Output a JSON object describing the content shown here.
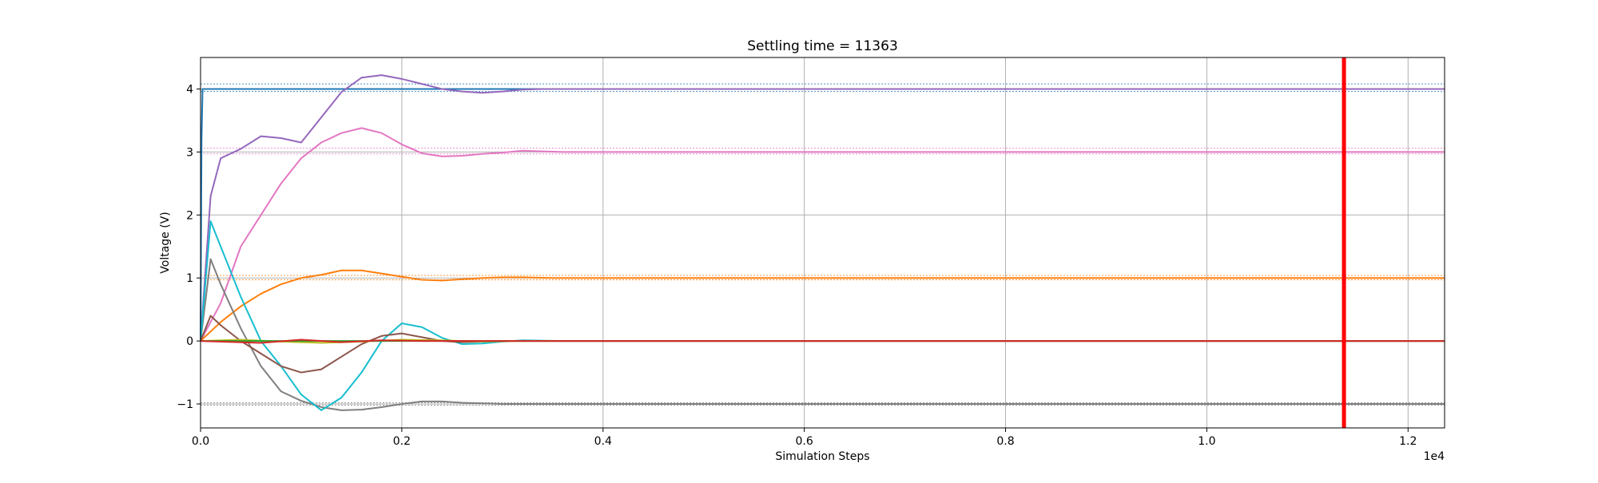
{
  "chart_data": {
    "type": "line",
    "title": "Settling time = 11363",
    "xlabel": "Simulation Steps",
    "ylabel": "Voltage (V)",
    "x_offset_label": "1e4",
    "xlim": [
      0,
      12363
    ],
    "ylim": [
      -1.38,
      4.5
    ],
    "x_ticks": [
      0,
      2000,
      4000,
      6000,
      8000,
      10000,
      12000
    ],
    "x_tick_labels": [
      "0.0",
      "0.2",
      "0.4",
      "0.6",
      "0.8",
      "1.0",
      "1.2"
    ],
    "y_ticks": [
      -1,
      0,
      1,
      2,
      3,
      4
    ],
    "y_tick_labels": [
      "−1",
      "0",
      "1",
      "2",
      "3",
      "4"
    ],
    "grid": true,
    "settling_time": 11363,
    "settling_line_color": "#ff0000",
    "tolerance_bands": [
      {
        "target": 4,
        "lower": 3.96,
        "upper": 4.08,
        "color": "#1f77b4"
      },
      {
        "target": 3,
        "lower": 2.97,
        "upper": 3.06,
        "color": "#e377c2"
      },
      {
        "target": 1,
        "lower": 0.97,
        "upper": 1.04,
        "color": "#ff7f0e"
      },
      {
        "target": -1,
        "lower": -1.02,
        "upper": -0.98,
        "color": "#7f7f7f"
      }
    ],
    "series": [
      {
        "color": "#1f77b4",
        "x": [
          0,
          10,
          20,
          30,
          40,
          60,
          100,
          12363
        ],
        "y": [
          0,
          3.2,
          4.0,
          4.0,
          4.0,
          4.0,
          4.0,
          4.0
        ]
      },
      {
        "color": "#9467bd",
        "x": [
          0,
          100,
          200,
          400,
          600,
          800,
          1000,
          1200,
          1400,
          1600,
          1800,
          2000,
          2200,
          2400,
          2600,
          2800,
          3000,
          3200,
          3400,
          3600,
          4000,
          12363
        ],
        "y": [
          0,
          2.3,
          2.9,
          3.05,
          3.25,
          3.22,
          3.15,
          3.55,
          3.95,
          4.18,
          4.22,
          4.16,
          4.08,
          4.0,
          3.96,
          3.94,
          3.96,
          3.99,
          4.0,
          4.0,
          4.0,
          4.0
        ]
      },
      {
        "color": "#e377c2",
        "x": [
          0,
          200,
          400,
          600,
          800,
          1000,
          1200,
          1400,
          1600,
          1800,
          2000,
          2200,
          2400,
          2600,
          2800,
          3000,
          3200,
          3400,
          3600,
          4000,
          12363
        ],
        "y": [
          0,
          0.6,
          1.5,
          2.0,
          2.5,
          2.9,
          3.15,
          3.3,
          3.38,
          3.3,
          3.12,
          2.98,
          2.93,
          2.94,
          2.97,
          2.99,
          3.02,
          3.01,
          3.0,
          3.0,
          3.0
        ]
      },
      {
        "color": "#ff7f0e",
        "x": [
          0,
          200,
          400,
          600,
          800,
          1000,
          1200,
          1400,
          1600,
          1800,
          2000,
          2200,
          2400,
          2600,
          2800,
          3000,
          3200,
          3500,
          4000,
          12363
        ],
        "y": [
          0,
          0.3,
          0.55,
          0.75,
          0.9,
          1.0,
          1.05,
          1.12,
          1.12,
          1.07,
          1.02,
          0.97,
          0.96,
          0.98,
          1.0,
          1.01,
          1.01,
          1.0,
          1.0,
          1.0
        ]
      },
      {
        "color": "#7f7f7f",
        "x": [
          0,
          100,
          200,
          400,
          600,
          800,
          1000,
          1200,
          1400,
          1600,
          1800,
          2000,
          2200,
          2400,
          2600,
          2800,
          3000,
          3400,
          4000,
          12363
        ],
        "y": [
          0,
          1.3,
          0.9,
          0.2,
          -0.4,
          -0.8,
          -0.95,
          -1.05,
          -1.1,
          -1.09,
          -1.05,
          -1.0,
          -0.96,
          -0.96,
          -0.98,
          -0.99,
          -1.0,
          -1.0,
          -1.0,
          -1.0
        ]
      },
      {
        "color": "#17becf",
        "x": [
          0,
          100,
          200,
          400,
          600,
          800,
          1000,
          1200,
          1400,
          1600,
          1800,
          2000,
          2200,
          2400,
          2600,
          2800,
          3000,
          3200,
          3600,
          12363
        ],
        "y": [
          0,
          1.9,
          1.5,
          0.7,
          0.0,
          -0.4,
          -0.85,
          -1.1,
          -0.9,
          -0.5,
          0.0,
          0.28,
          0.22,
          0.05,
          -0.05,
          -0.04,
          -0.01,
          0.01,
          0.0,
          0.0
        ]
      },
      {
        "color": "#8c564b",
        "x": [
          0,
          100,
          200,
          400,
          600,
          800,
          1000,
          1200,
          1400,
          1600,
          1800,
          2000,
          2200,
          2400,
          2600,
          3000,
          12363
        ],
        "y": [
          0,
          0.4,
          0.25,
          0.0,
          -0.2,
          -0.4,
          -0.5,
          -0.45,
          -0.25,
          -0.05,
          0.08,
          0.12,
          0.06,
          0.0,
          -0.02,
          0.0,
          0.0
        ]
      },
      {
        "color": "#bcbd22",
        "x": [
          0,
          400,
          800,
          1200,
          1600,
          2000,
          2400,
          2800,
          3200,
          3600,
          12363
        ],
        "y": [
          0,
          0.02,
          -0.01,
          -0.03,
          -0.01,
          0.02,
          0.01,
          -0.01,
          0.0,
          0.0,
          0.0
        ]
      },
      {
        "color": "#2ca02c",
        "x": [
          0,
          12363
        ],
        "y": [
          0.0,
          0.0
        ]
      },
      {
        "color": "#d62728",
        "x": [
          0,
          600,
          1000,
          1400,
          1800,
          2200,
          12363
        ],
        "y": [
          0,
          -0.03,
          0.02,
          -0.02,
          0.01,
          0.0,
          0.0
        ]
      }
    ]
  }
}
